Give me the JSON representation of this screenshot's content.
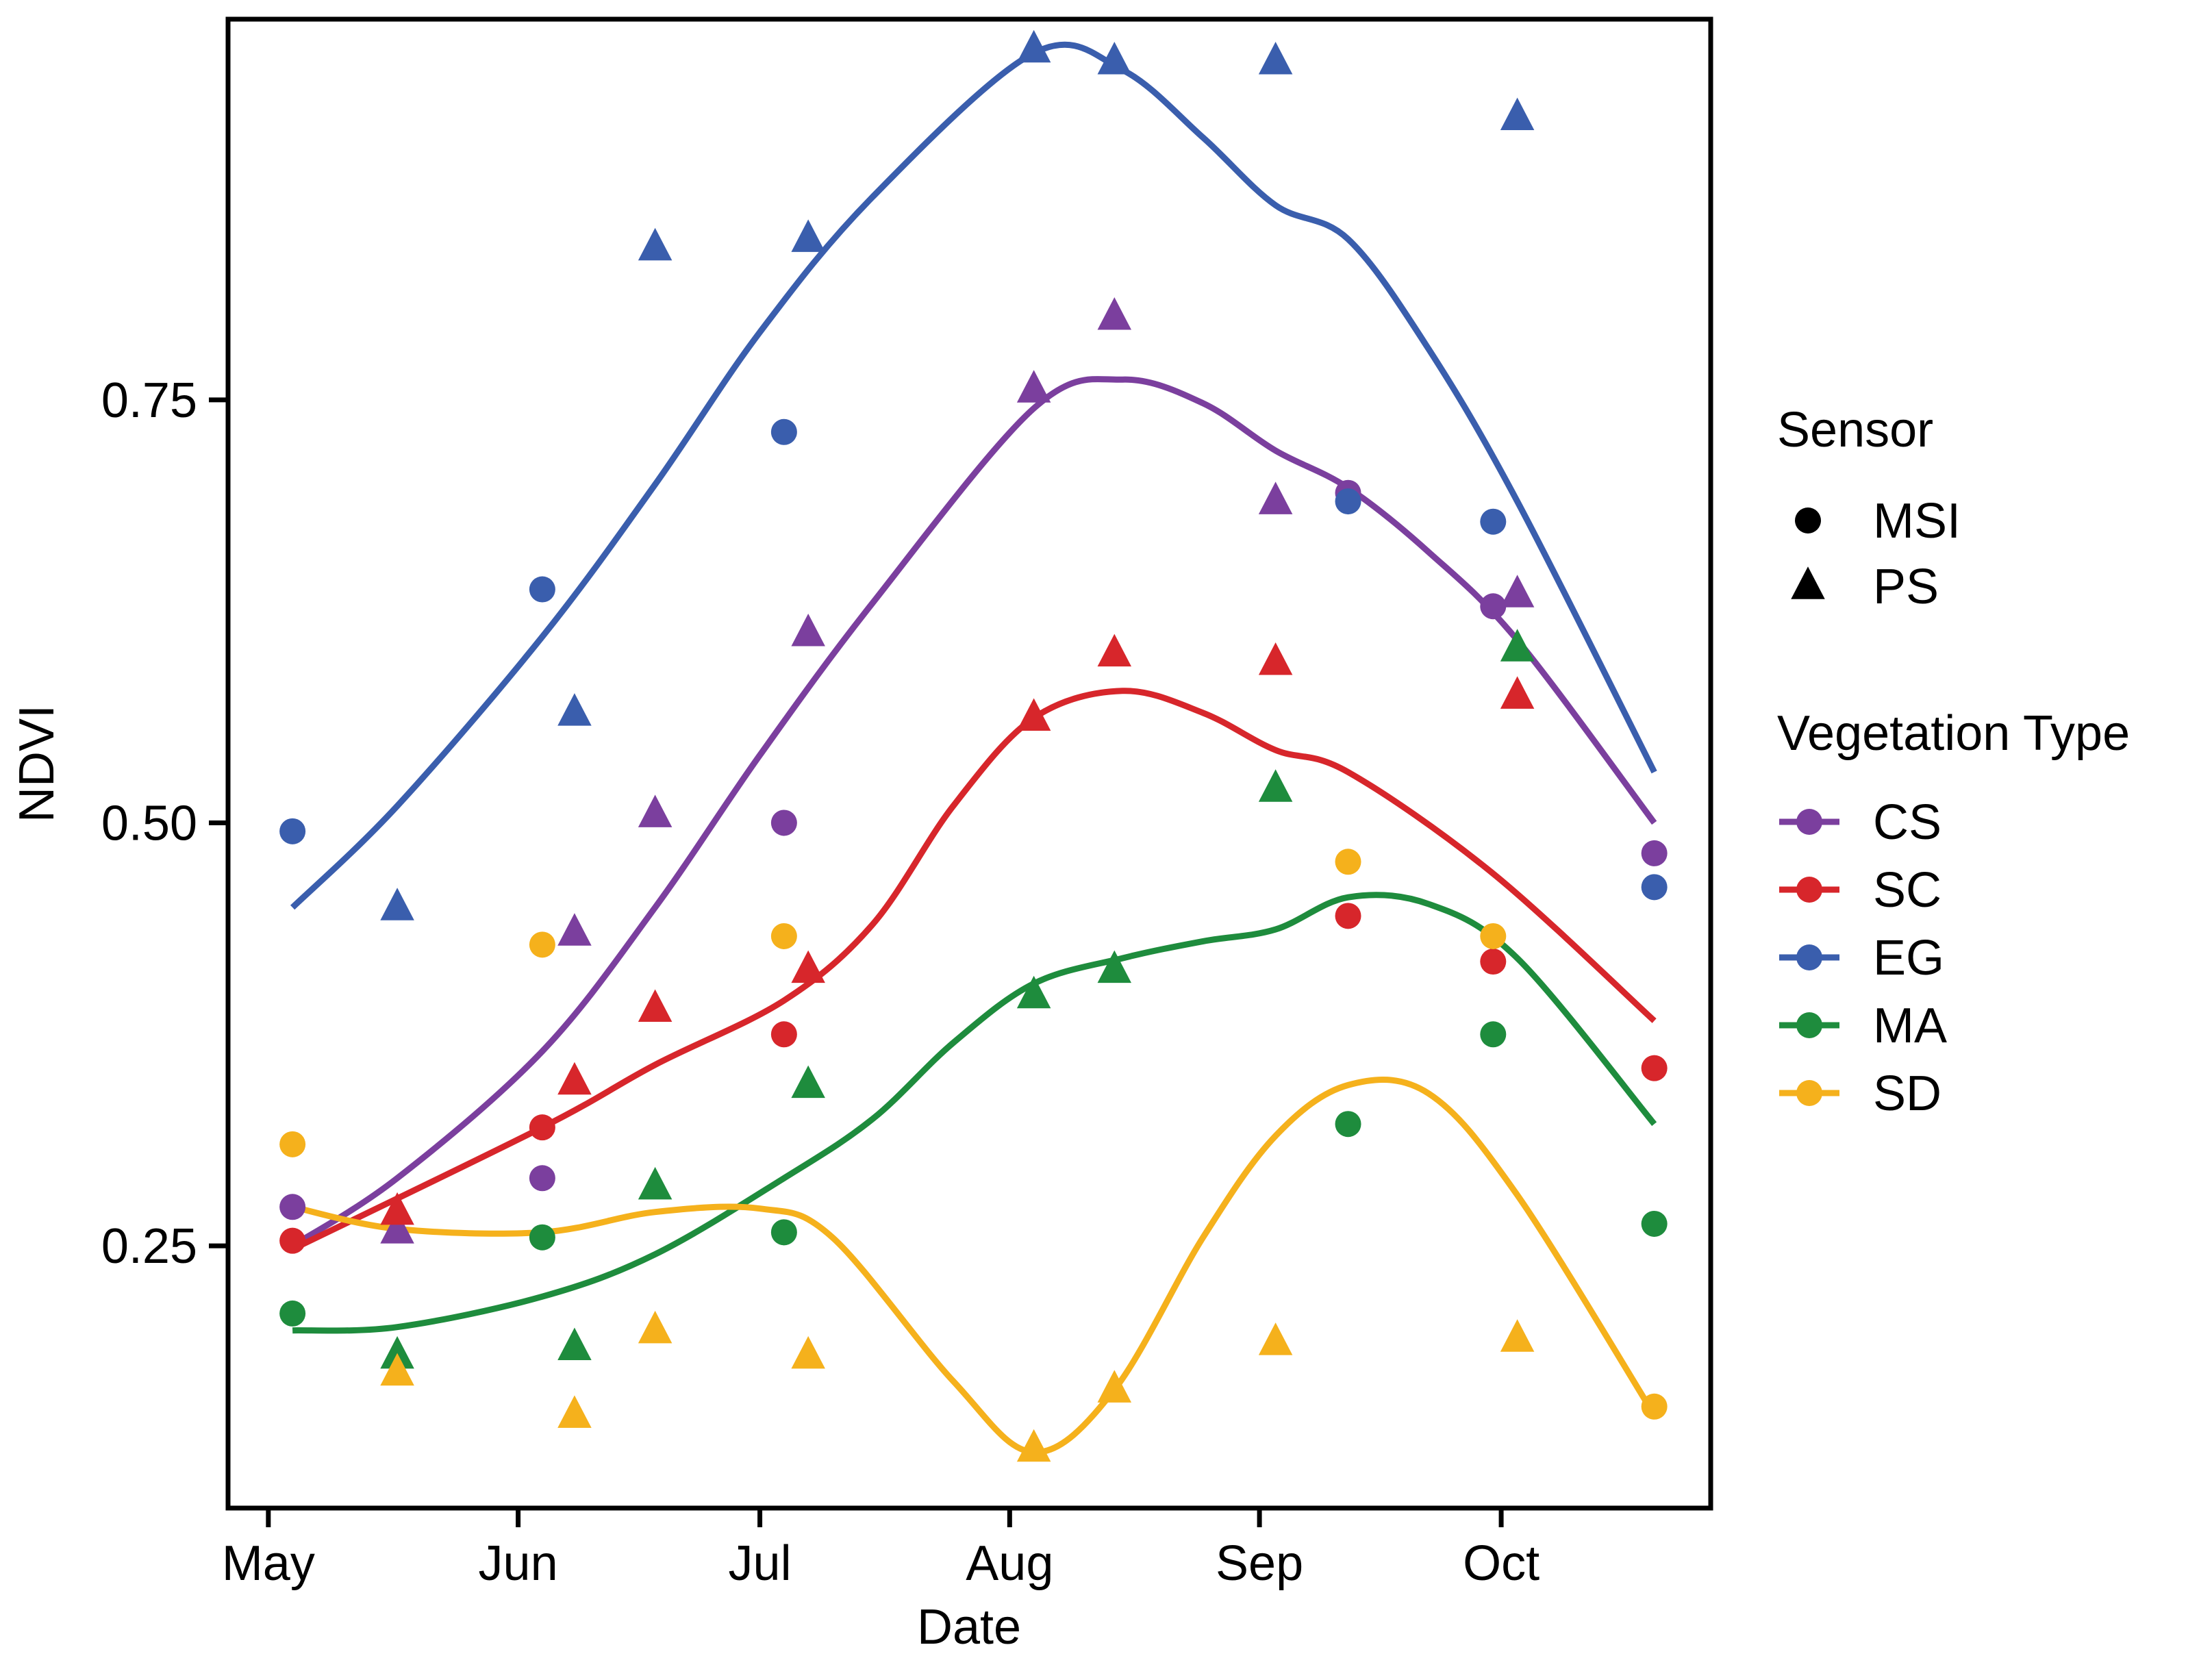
{
  "chart_data": {
    "type": "scatter",
    "title": "",
    "xlabel": "Date",
    "ylabel": "NDVI",
    "xlim": [
      "2000-04-26",
      "2000-10-27"
    ],
    "ylim": [
      0.095,
      0.975
    ],
    "x_ticks": [
      {
        "date": "2000-05-01",
        "label": "May"
      },
      {
        "date": "2000-06-01",
        "label": "Jun"
      },
      {
        "date": "2000-07-01",
        "label": "Jul"
      },
      {
        "date": "2000-08-01",
        "label": "Aug"
      },
      {
        "date": "2000-09-01",
        "label": "Sep"
      },
      {
        "date": "2000-10-01",
        "label": "Oct"
      }
    ],
    "y_ticks": [
      {
        "value": 0.25,
        "label": "0.25"
      },
      {
        "value": 0.5,
        "label": "0.50"
      },
      {
        "value": 0.75,
        "label": "0.75"
      }
    ],
    "grid": false,
    "legend_position": "right",
    "legend": {
      "sensor_title": "Sensor",
      "sensors": [
        {
          "name": "MSI",
          "shape": "circle"
        },
        {
          "name": "PS",
          "shape": "triangle"
        }
      ],
      "type_title": "Vegetation Type"
    },
    "series": [
      {
        "name": "CS",
        "color": "#7b3f9e",
        "msi": [
          {
            "x": "2000-05-04",
            "y": 0.273
          },
          {
            "x": "2000-06-04",
            "y": 0.29
          },
          {
            "x": "2000-07-04",
            "y": 0.5
          },
          {
            "x": "2000-09-12",
            "y": 0.695
          },
          {
            "x": "2000-09-30",
            "y": 0.628
          },
          {
            "x": "2000-10-20",
            "y": 0.482
          }
        ],
        "ps": [
          {
            "x": "2000-05-17",
            "y": 0.259
          },
          {
            "x": "2000-06-08",
            "y": 0.435
          },
          {
            "x": "2000-06-18",
            "y": 0.505
          },
          {
            "x": "2000-07-07",
            "y": 0.612
          },
          {
            "x": "2000-08-04",
            "y": 0.756
          },
          {
            "x": "2000-08-14",
            "y": 0.799
          },
          {
            "x": "2000-09-03",
            "y": 0.69
          },
          {
            "x": "2000-10-03",
            "y": 0.635
          }
        ],
        "smooth": [
          {
            "x": "2000-05-04",
            "y": 0.25
          },
          {
            "x": "2000-05-17",
            "y": 0.29
          },
          {
            "x": "2000-06-04",
            "y": 0.365
          },
          {
            "x": "2000-06-18",
            "y": 0.45
          },
          {
            "x": "2000-07-01",
            "y": 0.54
          },
          {
            "x": "2000-07-15",
            "y": 0.63
          },
          {
            "x": "2000-08-04",
            "y": 0.745
          },
          {
            "x": "2000-08-15",
            "y": 0.762
          },
          {
            "x": "2000-08-25",
            "y": 0.748
          },
          {
            "x": "2000-09-03",
            "y": 0.72
          },
          {
            "x": "2000-09-12",
            "y": 0.698
          },
          {
            "x": "2000-09-22",
            "y": 0.66
          },
          {
            "x": "2000-10-03",
            "y": 0.608
          },
          {
            "x": "2000-10-20",
            "y": 0.5
          }
        ]
      },
      {
        "name": "SC",
        "color": "#d7262b",
        "msi": [
          {
            "x": "2000-05-04",
            "y": 0.253
          },
          {
            "x": "2000-06-04",
            "y": 0.32
          },
          {
            "x": "2000-07-04",
            "y": 0.375
          },
          {
            "x": "2000-09-12",
            "y": 0.445
          },
          {
            "x": "2000-09-30",
            "y": 0.418
          },
          {
            "x": "2000-10-20",
            "y": 0.355
          }
        ],
        "ps": [
          {
            "x": "2000-05-17",
            "y": 0.27
          },
          {
            "x": "2000-06-08",
            "y": 0.347
          },
          {
            "x": "2000-06-18",
            "y": 0.39
          },
          {
            "x": "2000-07-07",
            "y": 0.413
          },
          {
            "x": "2000-08-04",
            "y": 0.562
          },
          {
            "x": "2000-08-14",
            "y": 0.6
          },
          {
            "x": "2000-09-03",
            "y": 0.595
          },
          {
            "x": "2000-10-03",
            "y": 0.575
          }
        ],
        "smooth": [
          {
            "x": "2000-05-04",
            "y": 0.248
          },
          {
            "x": "2000-06-04",
            "y": 0.32
          },
          {
            "x": "2000-06-18",
            "y": 0.357
          },
          {
            "x": "2000-07-04",
            "y": 0.395
          },
          {
            "x": "2000-07-15",
            "y": 0.44
          },
          {
            "x": "2000-07-25",
            "y": 0.51
          },
          {
            "x": "2000-08-04",
            "y": 0.562
          },
          {
            "x": "2000-08-15",
            "y": 0.578
          },
          {
            "x": "2000-08-25",
            "y": 0.565
          },
          {
            "x": "2000-09-03",
            "y": 0.543
          },
          {
            "x": "2000-09-12",
            "y": 0.53
          },
          {
            "x": "2000-09-30",
            "y": 0.47
          },
          {
            "x": "2000-10-20",
            "y": 0.383
          }
        ]
      },
      {
        "name": "EG",
        "color": "#3a5ead",
        "msi": [
          {
            "x": "2000-05-04",
            "y": 0.495
          },
          {
            "x": "2000-06-04",
            "y": 0.638
          },
          {
            "x": "2000-07-04",
            "y": 0.731
          },
          {
            "x": "2000-09-12",
            "y": 0.69
          },
          {
            "x": "2000-09-30",
            "y": 0.678
          },
          {
            "x": "2000-10-20",
            "y": 0.462
          }
        ],
        "ps": [
          {
            "x": "2000-05-17",
            "y": 0.45
          },
          {
            "x": "2000-06-08",
            "y": 0.565
          },
          {
            "x": "2000-06-18",
            "y": 0.84
          },
          {
            "x": "2000-07-07",
            "y": 0.845
          },
          {
            "x": "2000-08-04",
            "y": 0.957
          },
          {
            "x": "2000-08-14",
            "y": 0.95
          },
          {
            "x": "2000-09-03",
            "y": 0.95
          },
          {
            "x": "2000-10-03",
            "y": 0.917
          }
        ],
        "smooth": [
          {
            "x": "2000-05-04",
            "y": 0.45
          },
          {
            "x": "2000-05-17",
            "y": 0.51
          },
          {
            "x": "2000-06-04",
            "y": 0.61
          },
          {
            "x": "2000-06-18",
            "y": 0.7
          },
          {
            "x": "2000-07-01",
            "y": 0.79
          },
          {
            "x": "2000-07-15",
            "y": 0.87
          },
          {
            "x": "2000-08-04",
            "y": 0.955
          },
          {
            "x": "2000-08-15",
            "y": 0.945
          },
          {
            "x": "2000-08-25",
            "y": 0.905
          },
          {
            "x": "2000-09-03",
            "y": 0.865
          },
          {
            "x": "2000-09-12",
            "y": 0.845
          },
          {
            "x": "2000-09-22",
            "y": 0.78
          },
          {
            "x": "2000-10-03",
            "y": 0.69
          },
          {
            "x": "2000-10-20",
            "y": 0.53
          }
        ]
      },
      {
        "name": "MA",
        "color": "#1e8c3d",
        "msi": [
          {
            "x": "2000-05-04",
            "y": 0.21
          },
          {
            "x": "2000-06-04",
            "y": 0.255
          },
          {
            "x": "2000-07-04",
            "y": 0.258
          },
          {
            "x": "2000-09-12",
            "y": 0.322
          },
          {
            "x": "2000-09-30",
            "y": 0.375
          },
          {
            "x": "2000-10-20",
            "y": 0.263
          }
        ],
        "ps": [
          {
            "x": "2000-05-17",
            "y": 0.185
          },
          {
            "x": "2000-06-08",
            "y": 0.19
          },
          {
            "x": "2000-06-18",
            "y": 0.285
          },
          {
            "x": "2000-07-07",
            "y": 0.345
          },
          {
            "x": "2000-08-04",
            "y": 0.398
          },
          {
            "x": "2000-08-14",
            "y": 0.413
          },
          {
            "x": "2000-09-03",
            "y": 0.52
          },
          {
            "x": "2000-10-03",
            "y": 0.603
          }
        ],
        "smooth": [
          {
            "x": "2000-05-04",
            "y": 0.2
          },
          {
            "x": "2000-05-17",
            "y": 0.202
          },
          {
            "x": "2000-06-04",
            "y": 0.22
          },
          {
            "x": "2000-06-18",
            "y": 0.245
          },
          {
            "x": "2000-07-04",
            "y": 0.29
          },
          {
            "x": "2000-07-15",
            "y": 0.325
          },
          {
            "x": "2000-07-25",
            "y": 0.37
          },
          {
            "x": "2000-08-04",
            "y": 0.405
          },
          {
            "x": "2000-08-15",
            "y": 0.42
          },
          {
            "x": "2000-08-25",
            "y": 0.43
          },
          {
            "x": "2000-09-03",
            "y": 0.437
          },
          {
            "x": "2000-09-12",
            "y": 0.456
          },
          {
            "x": "2000-09-22",
            "y": 0.452
          },
          {
            "x": "2000-10-03",
            "y": 0.42
          },
          {
            "x": "2000-10-20",
            "y": 0.322
          }
        ]
      },
      {
        "name": "SD",
        "color": "#f5b11c",
        "msi": [
          {
            "x": "2000-05-04",
            "y": 0.31
          },
          {
            "x": "2000-06-04",
            "y": 0.428
          },
          {
            "x": "2000-07-04",
            "y": 0.433
          },
          {
            "x": "2000-09-12",
            "y": 0.477
          },
          {
            "x": "2000-09-30",
            "y": 0.433
          },
          {
            "x": "2000-10-20",
            "y": 0.155
          }
        ],
        "ps": [
          {
            "x": "2000-05-17",
            "y": 0.175
          },
          {
            "x": "2000-06-08",
            "y": 0.15
          },
          {
            "x": "2000-06-18",
            "y": 0.2
          },
          {
            "x": "2000-07-07",
            "y": 0.185
          },
          {
            "x": "2000-08-04",
            "y": 0.13
          },
          {
            "x": "2000-08-14",
            "y": 0.165
          },
          {
            "x": "2000-09-03",
            "y": 0.193
          },
          {
            "x": "2000-10-03",
            "y": 0.195
          }
        ],
        "smooth": [
          {
            "x": "2000-05-04",
            "y": 0.273
          },
          {
            "x": "2000-05-17",
            "y": 0.26
          },
          {
            "x": "2000-06-04",
            "y": 0.258
          },
          {
            "x": "2000-06-18",
            "y": 0.27
          },
          {
            "x": "2000-07-01",
            "y": 0.272
          },
          {
            "x": "2000-07-10",
            "y": 0.255
          },
          {
            "x": "2000-07-25",
            "y": 0.17
          },
          {
            "x": "2000-08-04",
            "y": 0.128
          },
          {
            "x": "2000-08-14",
            "y": 0.165
          },
          {
            "x": "2000-08-25",
            "y": 0.255
          },
          {
            "x": "2000-09-03",
            "y": 0.315
          },
          {
            "x": "2000-09-12",
            "y": 0.345
          },
          {
            "x": "2000-09-22",
            "y": 0.34
          },
          {
            "x": "2000-10-03",
            "y": 0.28
          },
          {
            "x": "2000-10-20",
            "y": 0.15
          }
        ]
      }
    ]
  }
}
